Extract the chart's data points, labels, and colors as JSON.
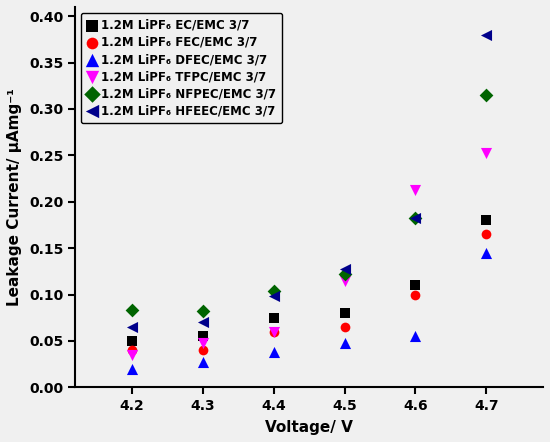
{
  "x_values": [
    4.2,
    4.3,
    4.4,
    4.5,
    4.6,
    4.7
  ],
  "series": [
    {
      "label": "1.2M LiPF₆ EC/EMC 3/7",
      "color": "black",
      "marker": "s",
      "markersize": 7,
      "values": [
        0.05,
        0.055,
        0.075,
        0.08,
        0.11,
        0.18
      ]
    },
    {
      "label": "1.2M LiPF₆ FEC/EMC 3/7",
      "color": "red",
      "marker": "o",
      "markersize": 7,
      "values": [
        0.04,
        0.04,
        0.06,
        0.065,
        0.1,
        0.165
      ]
    },
    {
      "label": "1.2M LiPF₆ DFEC/EMC 3/7",
      "color": "blue",
      "marker": "^",
      "markersize": 8,
      "values": [
        0.02,
        0.027,
        0.038,
        0.048,
        0.055,
        0.145
      ]
    },
    {
      "label": "1.2M LiPF₆ TFPC/EMC 3/7",
      "color": "magenta",
      "marker": "v",
      "markersize": 8,
      "values": [
        0.035,
        0.048,
        0.06,
        0.115,
        0.213,
        0.253
      ]
    },
    {
      "label": "1.2M LiPF₆ NFPEC/EMC 3/7",
      "color": "#006400",
      "marker": "D",
      "markersize": 7,
      "values": [
        0.083,
        0.082,
        0.104,
        0.122,
        0.183,
        0.315
      ]
    },
    {
      "label": "1.2M LiPF₆ HFEEC/EMC 3/7",
      "color": "#00008B",
      "marker": "<",
      "markersize": 8,
      "values": [
        0.065,
        0.07,
        0.098,
        0.128,
        0.183,
        0.38
      ]
    }
  ],
  "xlabel": "Voltage/ V",
  "ylabel": "Leakage Current/ μAmg⁻¹",
  "xlim": [
    4.12,
    4.78
  ],
  "ylim": [
    0.0,
    0.41
  ],
  "yticks": [
    0.0,
    0.05,
    0.1,
    0.15,
    0.2,
    0.25,
    0.3,
    0.35,
    0.4
  ],
  "xticks": [
    4.2,
    4.3,
    4.4,
    4.5,
    4.6,
    4.7
  ],
  "figsize": [
    5.5,
    4.42
  ],
  "dpi": 100,
  "bg_color": "#f0f0f0"
}
